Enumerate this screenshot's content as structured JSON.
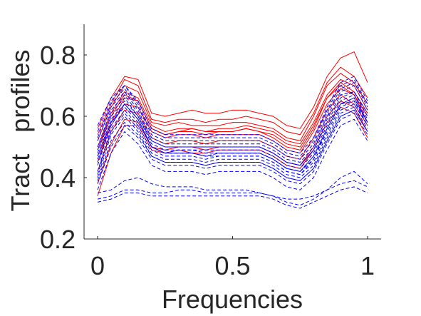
{
  "chart_data": {
    "type": "line",
    "xlabel": "Frequencies",
    "ylabel": "Tract   profiles",
    "xlim": [
      -0.05,
      1.05
    ],
    "ylim": [
      0.2,
      0.9
    ],
    "xticks": [
      0,
      0.5,
      1
    ],
    "yticks": [
      0.2,
      0.4,
      0.6,
      0.8
    ],
    "xtick_labels": [
      "0",
      "0.5",
      "1"
    ],
    "ytick_labels": [
      "0.2",
      "0.4",
      "0.6",
      "0.8"
    ],
    "grid": false,
    "legend": "none",
    "series_styles": [
      {
        "color": "#ff0000",
        "dash": "solid"
      },
      {
        "color": "#0000ff",
        "dash": "dashed"
      }
    ],
    "x": [
      0,
      0.05,
      0.1,
      0.15,
      0.2,
      0.25,
      0.3,
      0.35,
      0.4,
      0.45,
      0.5,
      0.55,
      0.6,
      0.65,
      0.7,
      0.75,
      0.8,
      0.85,
      0.9,
      0.95,
      1.0
    ],
    "series": [
      {
        "style": 0,
        "values": [
          0.47,
          0.58,
          0.66,
          0.65,
          0.56,
          0.54,
          0.55,
          0.55,
          0.54,
          0.55,
          0.55,
          0.56,
          0.55,
          0.53,
          0.5,
          0.49,
          0.56,
          0.66,
          0.7,
          0.67,
          0.6
        ]
      },
      {
        "style": 0,
        "values": [
          0.52,
          0.63,
          0.7,
          0.68,
          0.58,
          0.57,
          0.58,
          0.57,
          0.57,
          0.57,
          0.58,
          0.58,
          0.57,
          0.56,
          0.53,
          0.52,
          0.6,
          0.7,
          0.74,
          0.71,
          0.64
        ]
      },
      {
        "style": 0,
        "values": [
          0.42,
          0.55,
          0.62,
          0.61,
          0.53,
          0.51,
          0.52,
          0.52,
          0.51,
          0.52,
          0.52,
          0.52,
          0.52,
          0.5,
          0.47,
          0.46,
          0.53,
          0.62,
          0.67,
          0.64,
          0.57
        ]
      },
      {
        "style": 0,
        "values": [
          0.56,
          0.66,
          0.73,
          0.72,
          0.61,
          0.6,
          0.61,
          0.62,
          0.61,
          0.61,
          0.62,
          0.62,
          0.61,
          0.6,
          0.57,
          0.56,
          0.63,
          0.73,
          0.79,
          0.81,
          0.71
        ]
      },
      {
        "style": 0,
        "values": [
          0.38,
          0.51,
          0.59,
          0.58,
          0.5,
          0.49,
          0.5,
          0.5,
          0.49,
          0.5,
          0.5,
          0.5,
          0.5,
          0.48,
          0.45,
          0.44,
          0.5,
          0.6,
          0.65,
          0.63,
          0.55
        ]
      },
      {
        "style": 0,
        "values": [
          0.5,
          0.61,
          0.68,
          0.66,
          0.57,
          0.55,
          0.56,
          0.56,
          0.55,
          0.56,
          0.56,
          0.57,
          0.56,
          0.55,
          0.52,
          0.51,
          0.58,
          0.67,
          0.72,
          0.7,
          0.62
        ]
      },
      {
        "style": 0,
        "values": [
          0.45,
          0.57,
          0.64,
          0.63,
          0.55,
          0.53,
          0.54,
          0.54,
          0.53,
          0.54,
          0.54,
          0.54,
          0.54,
          0.52,
          0.49,
          0.48,
          0.55,
          0.64,
          0.69,
          0.67,
          0.58
        ]
      },
      {
        "style": 0,
        "values": [
          0.54,
          0.64,
          0.72,
          0.7,
          0.59,
          0.58,
          0.59,
          0.59,
          0.58,
          0.59,
          0.59,
          0.6,
          0.59,
          0.58,
          0.55,
          0.54,
          0.61,
          0.71,
          0.76,
          0.73,
          0.66
        ]
      },
      {
        "style": 0,
        "values": [
          0.34,
          0.48,
          0.57,
          0.57,
          0.49,
          0.48,
          0.49,
          0.48,
          0.48,
          0.49,
          0.49,
          0.49,
          0.49,
          0.47,
          0.44,
          0.43,
          0.49,
          0.58,
          0.63,
          0.61,
          0.53
        ]
      },
      {
        "style": 0,
        "values": [
          0.49,
          0.6,
          0.67,
          0.65,
          0.56,
          0.54,
          0.55,
          0.56,
          0.55,
          0.55,
          0.55,
          0.56,
          0.55,
          0.54,
          0.51,
          0.5,
          0.57,
          0.66,
          0.71,
          0.68,
          0.61
        ]
      },
      {
        "style": 1,
        "values": [
          0.45,
          0.58,
          0.63,
          0.58,
          0.5,
          0.48,
          0.48,
          0.48,
          0.47,
          0.47,
          0.47,
          0.47,
          0.47,
          0.45,
          0.42,
          0.41,
          0.46,
          0.56,
          0.64,
          0.65,
          0.58
        ]
      },
      {
        "style": 1,
        "values": [
          0.4,
          0.54,
          0.6,
          0.55,
          0.47,
          0.45,
          0.45,
          0.45,
          0.44,
          0.45,
          0.45,
          0.45,
          0.45,
          0.43,
          0.4,
          0.39,
          0.43,
          0.52,
          0.6,
          0.62,
          0.55
        ]
      },
      {
        "style": 1,
        "values": [
          0.5,
          0.62,
          0.67,
          0.61,
          0.52,
          0.5,
          0.5,
          0.5,
          0.5,
          0.5,
          0.5,
          0.5,
          0.5,
          0.48,
          0.45,
          0.44,
          0.49,
          0.59,
          0.67,
          0.68,
          0.61
        ]
      },
      {
        "style": 1,
        "values": [
          0.36,
          0.48,
          0.55,
          0.51,
          0.44,
          0.42,
          0.42,
          0.42,
          0.41,
          0.42,
          0.42,
          0.42,
          0.42,
          0.4,
          0.37,
          0.36,
          0.4,
          0.49,
          0.57,
          0.59,
          0.52
        ]
      },
      {
        "style": 1,
        "values": [
          0.55,
          0.65,
          0.7,
          0.64,
          0.55,
          0.53,
          0.53,
          0.53,
          0.53,
          0.53,
          0.53,
          0.53,
          0.53,
          0.51,
          0.48,
          0.47,
          0.52,
          0.62,
          0.7,
          0.72,
          0.64
        ]
      },
      {
        "style": 1,
        "values": [
          0.33,
          0.34,
          0.36,
          0.36,
          0.35,
          0.35,
          0.36,
          0.36,
          0.35,
          0.35,
          0.35,
          0.35,
          0.35,
          0.34,
          0.33,
          0.33,
          0.34,
          0.36,
          0.38,
          0.39,
          0.37
        ]
      },
      {
        "style": 1,
        "values": [
          0.42,
          0.56,
          0.62,
          0.57,
          0.49,
          0.47,
          0.47,
          0.47,
          0.46,
          0.47,
          0.47,
          0.47,
          0.47,
          0.45,
          0.42,
          0.41,
          0.45,
          0.54,
          0.62,
          0.64,
          0.57
        ]
      },
      {
        "style": 1,
        "values": [
          0.48,
          0.6,
          0.65,
          0.6,
          0.51,
          0.49,
          0.49,
          0.49,
          0.49,
          0.49,
          0.49,
          0.49,
          0.49,
          0.47,
          0.44,
          0.43,
          0.48,
          0.57,
          0.65,
          0.67,
          0.59
        ]
      },
      {
        "style": 1,
        "values": [
          0.38,
          0.5,
          0.57,
          0.53,
          0.46,
          0.44,
          0.44,
          0.44,
          0.43,
          0.44,
          0.44,
          0.44,
          0.44,
          0.42,
          0.39,
          0.38,
          0.42,
          0.51,
          0.59,
          0.61,
          0.54
        ]
      },
      {
        "style": 1,
        "values": [
          0.52,
          0.63,
          0.68,
          0.62,
          0.53,
          0.51,
          0.51,
          0.51,
          0.51,
          0.51,
          0.51,
          0.51,
          0.51,
          0.49,
          0.46,
          0.45,
          0.5,
          0.6,
          0.68,
          0.7,
          0.62
        ]
      },
      {
        "style": 1,
        "values": [
          0.44,
          0.57,
          0.64,
          0.59,
          0.5,
          0.48,
          0.48,
          0.48,
          0.47,
          0.48,
          0.48,
          0.48,
          0.48,
          0.46,
          0.43,
          0.42,
          0.47,
          0.56,
          0.64,
          0.66,
          0.58
        ]
      },
      {
        "style": 1,
        "values": [
          0.35,
          0.36,
          0.39,
          0.4,
          0.38,
          0.37,
          0.37,
          0.37,
          0.36,
          0.36,
          0.36,
          0.36,
          0.35,
          0.34,
          0.32,
          0.31,
          0.33,
          0.36,
          0.4,
          0.42,
          0.38
        ]
      },
      {
        "style": 1,
        "values": [
          0.57,
          0.66,
          0.7,
          0.65,
          0.56,
          0.54,
          0.54,
          0.54,
          0.54,
          0.54,
          0.54,
          0.54,
          0.54,
          0.52,
          0.49,
          0.48,
          0.53,
          0.63,
          0.71,
          0.73,
          0.65
        ]
      },
      {
        "style": 1,
        "values": [
          0.41,
          0.55,
          0.61,
          0.56,
          0.48,
          0.46,
          0.46,
          0.46,
          0.45,
          0.46,
          0.46,
          0.46,
          0.46,
          0.44,
          0.41,
          0.4,
          0.44,
          0.53,
          0.61,
          0.63,
          0.56
        ]
      },
      {
        "style": 1,
        "values": [
          0.47,
          0.59,
          0.64,
          0.59,
          0.5,
          0.48,
          0.49,
          0.49,
          0.48,
          0.48,
          0.48,
          0.48,
          0.48,
          0.46,
          0.43,
          0.42,
          0.47,
          0.56,
          0.64,
          0.66,
          0.58
        ]
      },
      {
        "style": 1,
        "values": [
          0.39,
          0.52,
          0.58,
          0.54,
          0.47,
          0.45,
          0.45,
          0.45,
          0.44,
          0.45,
          0.45,
          0.45,
          0.45,
          0.43,
          0.4,
          0.39,
          0.43,
          0.52,
          0.6,
          0.62,
          0.55
        ]
      },
      {
        "style": 1,
        "values": [
          0.53,
          0.64,
          0.69,
          0.63,
          0.54,
          0.52,
          0.52,
          0.52,
          0.52,
          0.52,
          0.52,
          0.52,
          0.52,
          0.5,
          0.47,
          0.46,
          0.51,
          0.61,
          0.69,
          0.71,
          0.63
        ]
      },
      {
        "style": 1,
        "values": [
          0.46,
          0.58,
          0.64,
          0.59,
          0.5,
          0.48,
          0.48,
          0.48,
          0.47,
          0.48,
          0.48,
          0.48,
          0.48,
          0.46,
          0.43,
          0.42,
          0.46,
          0.55,
          0.63,
          0.65,
          0.57
        ]
      },
      {
        "style": 1,
        "values": [
          0.32,
          0.33,
          0.35,
          0.35,
          0.34,
          0.34,
          0.34,
          0.34,
          0.34,
          0.34,
          0.34,
          0.34,
          0.34,
          0.33,
          0.31,
          0.3,
          0.32,
          0.34,
          0.36,
          0.37,
          0.35
        ]
      },
      {
        "style": 1,
        "values": [
          0.49,
          0.61,
          0.66,
          0.6,
          0.52,
          0.5,
          0.5,
          0.5,
          0.5,
          0.5,
          0.5,
          0.5,
          0.5,
          0.48,
          0.45,
          0.44,
          0.49,
          0.58,
          0.66,
          0.68,
          0.6
        ]
      }
    ]
  }
}
